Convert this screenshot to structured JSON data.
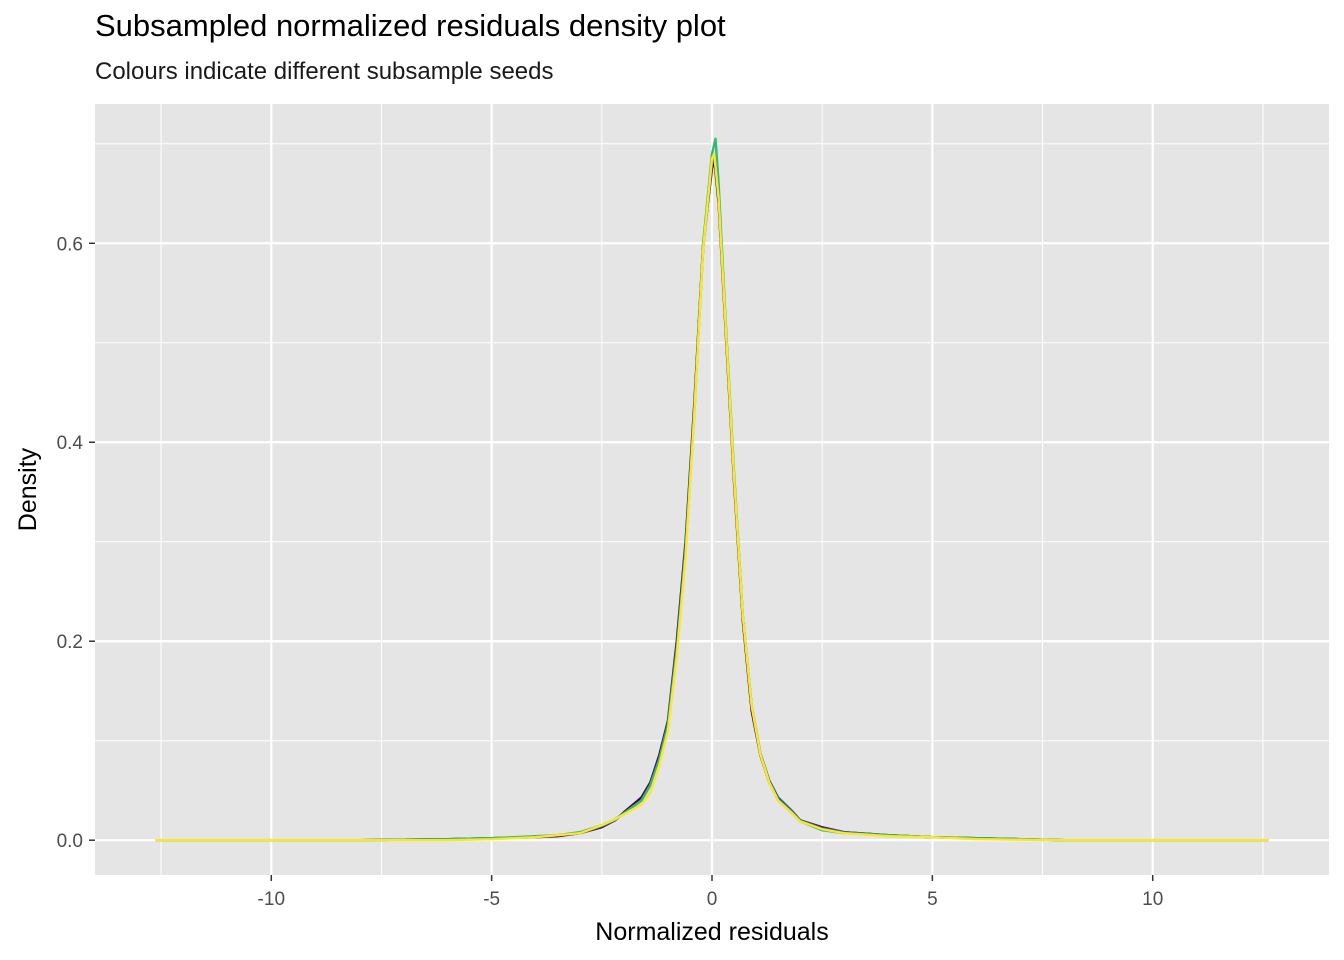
{
  "chart_data": {
    "type": "line",
    "title": "Subsampled normalized residuals density plot",
    "subtitle": "Colours indicate different subsample seeds",
    "xlabel": "Normalized residuals",
    "ylabel": "Density",
    "xlim": [
      -14,
      14
    ],
    "ylim": [
      -0.035,
      0.74
    ],
    "x_ticks": [
      -10,
      -5,
      0,
      5,
      10
    ],
    "x_tick_labels": [
      "-10",
      "-5",
      "0",
      "5",
      "10"
    ],
    "y_ticks": [
      0.0,
      0.2,
      0.4,
      0.6
    ],
    "y_tick_labels": [
      "0.0",
      "0.2",
      "0.4",
      "0.6"
    ],
    "grid": true,
    "legend": "none",
    "colors": {
      "panel_background": "#e5e5e5",
      "grid_line": "#ffffff"
    },
    "series": [
      {
        "color": "#440154",
        "points": [
          [
            -12.6,
            0
          ],
          [
            -8,
            0
          ],
          [
            -6,
            0.001
          ],
          [
            -5,
            0.002
          ],
          [
            -4,
            0.003
          ],
          [
            -3.5,
            0.004
          ],
          [
            -3,
            0.007
          ],
          [
            -2.5,
            0.013
          ],
          [
            -2.2,
            0.02
          ],
          [
            -2,
            0.028
          ],
          [
            -1.6,
            0.043
          ],
          [
            -1.4,
            0.058
          ],
          [
            -1.2,
            0.085
          ],
          [
            -1,
            0.12
          ],
          [
            -0.8,
            0.2
          ],
          [
            -0.6,
            0.3
          ],
          [
            -0.4,
            0.44
          ],
          [
            -0.2,
            0.6
          ],
          [
            0,
            0.675
          ],
          [
            0.05,
            0.685
          ],
          [
            0.15,
            0.64
          ],
          [
            0.3,
            0.52
          ],
          [
            0.5,
            0.36
          ],
          [
            0.7,
            0.22
          ],
          [
            0.9,
            0.13
          ],
          [
            1.1,
            0.085
          ],
          [
            1.3,
            0.058
          ],
          [
            1.5,
            0.042
          ],
          [
            1.8,
            0.03
          ],
          [
            2,
            0.02
          ],
          [
            2.5,
            0.013
          ],
          [
            3,
            0.008
          ],
          [
            4,
            0.005
          ],
          [
            5,
            0.003
          ],
          [
            6,
            0.002
          ],
          [
            8,
            0
          ],
          [
            12.6,
            0
          ]
        ]
      },
      {
        "color": "#31688e",
        "points": [
          [
            -12.6,
            0
          ],
          [
            -8,
            0
          ],
          [
            -6,
            0.001
          ],
          [
            -5,
            0.002
          ],
          [
            -4,
            0.003
          ],
          [
            -3.5,
            0.005
          ],
          [
            -3,
            0.007
          ],
          [
            -2.5,
            0.014
          ],
          [
            -2.2,
            0.02
          ],
          [
            -2,
            0.027
          ],
          [
            -1.6,
            0.04
          ],
          [
            -1.4,
            0.056
          ],
          [
            -1.2,
            0.082
          ],
          [
            -1,
            0.118
          ],
          [
            -0.8,
            0.195
          ],
          [
            -0.6,
            0.295
          ],
          [
            -0.4,
            0.435
          ],
          [
            -0.2,
            0.595
          ],
          [
            0,
            0.68
          ],
          [
            0.05,
            0.69
          ],
          [
            0.15,
            0.645
          ],
          [
            0.3,
            0.525
          ],
          [
            0.5,
            0.365
          ],
          [
            0.7,
            0.225
          ],
          [
            0.9,
            0.135
          ],
          [
            1.1,
            0.087
          ],
          [
            1.3,
            0.06
          ],
          [
            1.5,
            0.043
          ],
          [
            1.8,
            0.03
          ],
          [
            2,
            0.02
          ],
          [
            2.5,
            0.012
          ],
          [
            3,
            0.008
          ],
          [
            4,
            0.005
          ],
          [
            5,
            0.003
          ],
          [
            6,
            0.002
          ],
          [
            8,
            0
          ],
          [
            12.6,
            0
          ]
        ]
      },
      {
        "color": "#35b779",
        "points": [
          [
            -12.6,
            0
          ],
          [
            -8,
            0
          ],
          [
            -6,
            0.001
          ],
          [
            -5,
            0.002
          ],
          [
            -4,
            0.004
          ],
          [
            -3.5,
            0.005
          ],
          [
            -3,
            0.008
          ],
          [
            -2.5,
            0.015
          ],
          [
            -2.2,
            0.021
          ],
          [
            -2,
            0.027
          ],
          [
            -1.6,
            0.04
          ],
          [
            -1.4,
            0.055
          ],
          [
            -1.2,
            0.08
          ],
          [
            -1,
            0.115
          ],
          [
            -0.8,
            0.19
          ],
          [
            -0.6,
            0.29
          ],
          [
            -0.4,
            0.43
          ],
          [
            -0.2,
            0.6
          ],
          [
            0,
            0.69
          ],
          [
            0.08,
            0.705
          ],
          [
            0.15,
            0.66
          ],
          [
            0.3,
            0.53
          ],
          [
            0.5,
            0.37
          ],
          [
            0.7,
            0.225
          ],
          [
            0.9,
            0.135
          ],
          [
            1.1,
            0.086
          ],
          [
            1.3,
            0.058
          ],
          [
            1.5,
            0.04
          ],
          [
            1.8,
            0.028
          ],
          [
            2,
            0.019
          ],
          [
            2.5,
            0.01
          ],
          [
            3,
            0.007
          ],
          [
            4,
            0.005
          ],
          [
            5,
            0.003
          ],
          [
            6,
            0.002
          ],
          [
            8,
            0
          ],
          [
            12.6,
            0
          ]
        ]
      },
      {
        "color": "#fde725",
        "points": [
          [
            -12.6,
            0
          ],
          [
            -8,
            0
          ],
          [
            -6,
            0
          ],
          [
            -5,
            0.001
          ],
          [
            -4,
            0.003
          ],
          [
            -3.5,
            0.005
          ],
          [
            -3,
            0.007
          ],
          [
            -2.5,
            0.015
          ],
          [
            -2.2,
            0.021
          ],
          [
            -2,
            0.026
          ],
          [
            -1.6,
            0.036
          ],
          [
            -1.4,
            0.048
          ],
          [
            -1.2,
            0.075
          ],
          [
            -1,
            0.11
          ],
          [
            -0.8,
            0.185
          ],
          [
            -0.6,
            0.285
          ],
          [
            -0.4,
            0.43
          ],
          [
            -0.2,
            0.595
          ],
          [
            0,
            0.685
          ],
          [
            0.05,
            0.69
          ],
          [
            0.15,
            0.645
          ],
          [
            0.3,
            0.525
          ],
          [
            0.5,
            0.365
          ],
          [
            0.7,
            0.225
          ],
          [
            0.9,
            0.135
          ],
          [
            1.1,
            0.086
          ],
          [
            1.3,
            0.058
          ],
          [
            1.5,
            0.04
          ],
          [
            1.8,
            0.028
          ],
          [
            2,
            0.019
          ],
          [
            2.5,
            0.011
          ],
          [
            3,
            0.007
          ],
          [
            4,
            0.004
          ],
          [
            5,
            0.003
          ],
          [
            6,
            0.001
          ],
          [
            8,
            0
          ],
          [
            12.6,
            0
          ]
        ]
      }
    ]
  }
}
